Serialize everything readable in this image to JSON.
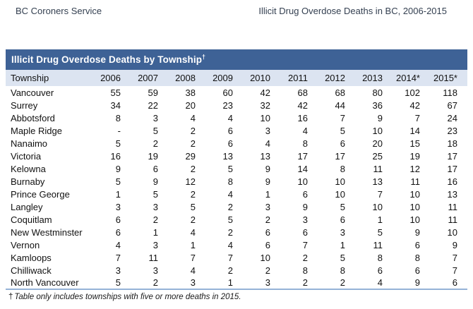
{
  "page_header": {
    "left": "BC Coroners Service",
    "right": "Illicit Drug Overdose Deaths in BC, 2006-2015"
  },
  "table": {
    "title": "Illicit Drug Overdose Deaths by Township",
    "title_marker": "†",
    "columns": [
      "Township",
      "2006",
      "2007",
      "2008",
      "2009",
      "2010",
      "2011",
      "2012",
      "2013",
      "2014*",
      "2015*"
    ],
    "rows": [
      {
        "township": "Vancouver",
        "values": [
          "55",
          "59",
          "38",
          "60",
          "42",
          "68",
          "68",
          "80",
          "102",
          "118"
        ]
      },
      {
        "township": "Surrey",
        "values": [
          "34",
          "22",
          "20",
          "23",
          "32",
          "42",
          "44",
          "36",
          "42",
          "67"
        ]
      },
      {
        "township": "Abbotsford",
        "values": [
          "8",
          "3",
          "4",
          "4",
          "10",
          "16",
          "7",
          "9",
          "7",
          "24"
        ]
      },
      {
        "township": "Maple Ridge",
        "values": [
          "-",
          "5",
          "2",
          "6",
          "3",
          "4",
          "5",
          "10",
          "14",
          "23"
        ]
      },
      {
        "township": "Nanaimo",
        "values": [
          "5",
          "2",
          "2",
          "6",
          "4",
          "8",
          "6",
          "20",
          "15",
          "18"
        ]
      },
      {
        "township": "Victoria",
        "values": [
          "16",
          "19",
          "29",
          "13",
          "13",
          "17",
          "17",
          "25",
          "19",
          "17"
        ]
      },
      {
        "township": "Kelowna",
        "values": [
          "9",
          "6",
          "2",
          "5",
          "9",
          "14",
          "8",
          "11",
          "12",
          "17"
        ]
      },
      {
        "township": "Burnaby",
        "values": [
          "5",
          "9",
          "12",
          "8",
          "9",
          "10",
          "10",
          "13",
          "11",
          "16"
        ]
      },
      {
        "township": "Prince George",
        "values": [
          "1",
          "5",
          "2",
          "4",
          "1",
          "6",
          "10",
          "7",
          "10",
          "13"
        ]
      },
      {
        "township": "Langley",
        "values": [
          "3",
          "3",
          "5",
          "2",
          "3",
          "9",
          "5",
          "10",
          "10",
          "11"
        ]
      },
      {
        "township": "Coquitlam",
        "values": [
          "6",
          "2",
          "2",
          "5",
          "2",
          "3",
          "6",
          "1",
          "10",
          "11"
        ]
      },
      {
        "township": "New Westminster",
        "values": [
          "6",
          "1",
          "4",
          "2",
          "6",
          "6",
          "3",
          "5",
          "9",
          "10"
        ]
      },
      {
        "township": "Vernon",
        "values": [
          "4",
          "3",
          "1",
          "4",
          "6",
          "7",
          "1",
          "11",
          "6",
          "9"
        ]
      },
      {
        "township": "Kamloops",
        "values": [
          "7",
          "11",
          "7",
          "7",
          "10",
          "2",
          "5",
          "8",
          "8",
          "7"
        ]
      },
      {
        "township": "Chilliwack",
        "values": [
          "3",
          "3",
          "4",
          "2",
          "2",
          "8",
          "8",
          "6",
          "6",
          "7"
        ]
      },
      {
        "township": "North Vancouver",
        "values": [
          "5",
          "2",
          "3",
          "1",
          "3",
          "2",
          "2",
          "4",
          "9",
          "6"
        ]
      }
    ],
    "footnote_marker": "†",
    "footnote_text": "Table only includes townships with five or more deaths in 2015."
  },
  "colors": {
    "title_bar_bg": "#3e6296",
    "title_bar_text": "#ffffff",
    "header_row_bg": "#dce4f1",
    "page_header_text": "#333f50",
    "body_text": "#111111",
    "table_bottom_border": "#95b3d7"
  }
}
